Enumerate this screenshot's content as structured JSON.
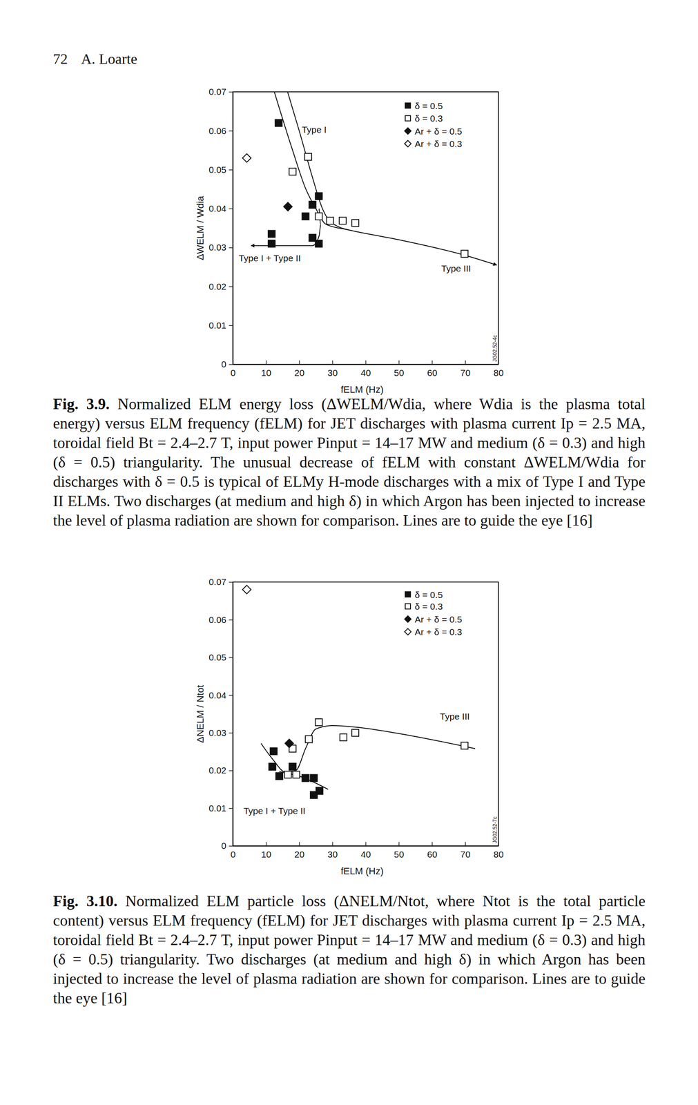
{
  "header": {
    "page": "72",
    "author": "A. Loarte"
  },
  "chart_data": [
    {
      "type": "scatter",
      "x_label": "fELM (Hz)",
      "y_label": "ΔWELM / Wdia",
      "xlim": [
        0,
        80
      ],
      "ylim": [
        0,
        0.07
      ],
      "xticks": [
        0,
        10,
        20,
        30,
        40,
        50,
        60,
        70,
        80
      ],
      "yticks": [
        0,
        0.01,
        0.02,
        0.03,
        0.04,
        0.05,
        0.06,
        0.07
      ],
      "legend": "top-right",
      "figure_id": "JG02.52-4c",
      "series": [
        {
          "name": "δ = 0.5",
          "marker": "square",
          "color": "#111111",
          "x": [
            13.8,
            24,
            25.9,
            21.9,
            24,
            25.9,
            11.7,
            11.7
          ],
          "values": [
            0.062,
            0.041,
            0.0432,
            0.038,
            0.0325,
            0.031,
            0.0335,
            0.031
          ]
        },
        {
          "name": "δ = 0.3",
          "marker": "open-square",
          "color": "#111111",
          "x": [
            18,
            22.7,
            25.9,
            29.3,
            33.1,
            36.9,
            69.8
          ],
          "values": [
            0.0495,
            0.0533,
            0.038,
            0.0369,
            0.0369,
            0.0363,
            0.0284
          ]
        },
        {
          "name": "Ar + δ = 0.5",
          "marker": "diamond",
          "color": "#111111",
          "x": [
            16.6
          ],
          "values": [
            0.0405
          ]
        },
        {
          "name": "Ar + δ = 0.3",
          "marker": "open-diamond",
          "color": "#111111",
          "x": [
            4.2
          ],
          "values": [
            0.053
          ]
        },
        {
          "type": "line",
          "line_style": "arrow",
          "color": "#111111",
          "x": [
            12.5,
            18,
            22,
            25,
            28,
            35,
            50,
            70,
            79.5
          ],
          "values": [
            0.07,
            0.055,
            0.045,
            0.04,
            0.036,
            0.0345,
            0.032,
            0.028,
            0.0255
          ]
        },
        {
          "type": "line",
          "line_style": "solid",
          "color": "#111111",
          "x": [
            16.5,
            20,
            24,
            27,
            29,
            35
          ],
          "values": [
            0.07,
            0.06,
            0.048,
            0.04,
            0.037,
            0.0345
          ]
        },
        {
          "type": "line",
          "line_style": "arrow",
          "color": "#111111",
          "x": [
            26,
            26.5,
            26,
            24,
            15,
            5.5
          ],
          "values": [
            0.04,
            0.036,
            0.033,
            0.0305,
            0.0305,
            0.0305
          ]
        }
      ],
      "annotations": [
        {
          "text": "Type I",
          "x": 20.8,
          "y": 0.0595
        },
        {
          "text": "Type I + Type II",
          "x": 1.8,
          "y": 0.0265
        },
        {
          "text": "Type III",
          "x": 62.8,
          "y": 0.0238
        }
      ]
    },
    {
      "type": "scatter",
      "x_label": "fELM (Hz)",
      "y_label": "ΔNELM / Ntot",
      "xlim": [
        0,
        80
      ],
      "ylim": [
        0,
        0.07
      ],
      "xticks": [
        0,
        10,
        20,
        30,
        40,
        50,
        60,
        70,
        80
      ],
      "yticks": [
        0,
        0.01,
        0.02,
        0.03,
        0.04,
        0.05,
        0.06,
        0.07
      ],
      "legend": "top-right",
      "figure_id": "JG02.52-7c",
      "series": [
        {
          "name": "δ = 0.5",
          "marker": "square",
          "color": "#111111",
          "x": [
            12.3,
            11.9,
            14,
            18,
            21.9,
            24.4,
            24.4,
            26.1
          ],
          "values": [
            0.0251,
            0.021,
            0.0185,
            0.021,
            0.018,
            0.018,
            0.0135,
            0.0146
          ]
        },
        {
          "name": "δ = 0.3",
          "marker": "open-square",
          "color": "#111111",
          "x": [
            18,
            16.6,
            19.1,
            22.9,
            25.9,
            33.3,
            36.9,
            69.8
          ],
          "values": [
            0.0258,
            0.0189,
            0.0189,
            0.0283,
            0.0328,
            0.0288,
            0.03,
            0.0266
          ]
        },
        {
          "name": "Ar + δ = 0.5",
          "marker": "diamond",
          "color": "#111111",
          "x": [
            17
          ],
          "values": [
            0.0272
          ]
        },
        {
          "name": "Ar + δ = 0.3",
          "marker": "open-diamond",
          "color": "#111111",
          "x": [
            4.2
          ],
          "values": [
            0.068
          ]
        },
        {
          "type": "line",
          "line_style": "solid",
          "color": "#111111",
          "x": [
            8.5,
            12,
            16,
            19,
            22,
            25,
            30,
            37,
            50,
            73
          ],
          "values": [
            0.0272,
            0.023,
            0.0195,
            0.02,
            0.026,
            0.031,
            0.0319,
            0.0315,
            0.0298,
            0.0258
          ]
        },
        {
          "type": "line",
          "line_style": "solid",
          "color": "#111111",
          "x": [
            14,
            20,
            28.7
          ],
          "values": [
            0.0197,
            0.0185,
            0.015
          ]
        }
      ],
      "annotations": [
        {
          "text": "Type III",
          "x": 62.4,
          "y": 0.0335
        },
        {
          "text": "Type I + Type II",
          "x": 3.2,
          "y": 0.0085
        }
      ]
    }
  ],
  "captions": [
    {
      "label": "Fig. 3.9.",
      "text": "Normalized ELM energy loss (ΔWELM/Wdia, where Wdia is the plasma total energy) versus ELM frequency (fELM) for JET discharges with plasma current Ip = 2.5 MA, toroidal field Bt = 2.4–2.7 T, input power Pinput = 14–17 MW and medium (δ = 0.3) and high (δ = 0.5) triangularity. The unusual decrease of fELM with constant ΔWELM/Wdia for discharges with δ = 0.5 is typical of ELMy H-mode discharges with a mix of Type I and Type II ELMs. Two discharges (at medium and high δ) in which Argon has been injected to increase the level of plasma radiation are shown for comparison. Lines are to guide the eye [16]"
    },
    {
      "label": "Fig. 3.10.",
      "text": "Normalized ELM particle loss (ΔNELM/Ntot, where Ntot is the total particle content) versus ELM frequency (fELM) for JET discharges with plasma current Ip = 2.5 MA, toroidal field Bt = 2.4–2.7 T, input power Pinput = 14–17 MW and medium (δ = 0.3) and high (δ = 0.5) triangularity. Two discharges (at medium and high δ) in which Argon has been injected to increase the level of plasma radiation are shown for comparison. Lines are to guide the eye [16]"
    }
  ]
}
